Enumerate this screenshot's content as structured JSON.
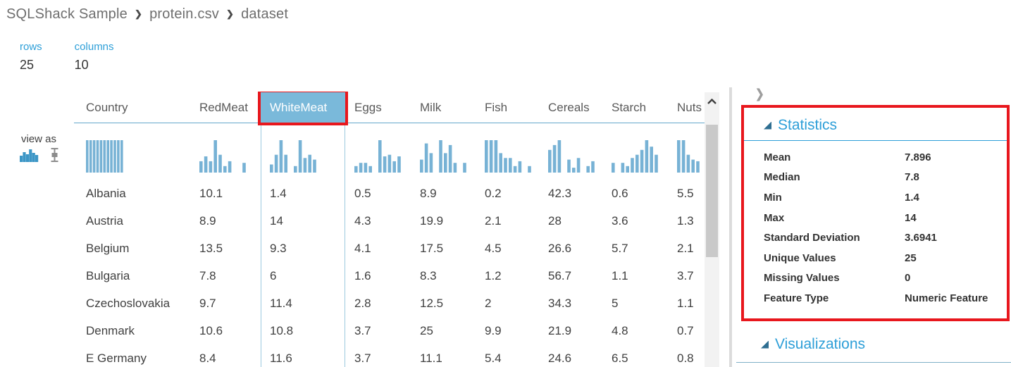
{
  "breadcrumb": {
    "items": [
      "SQLShack Sample",
      "protein.csv",
      "dataset"
    ],
    "separator": "❯"
  },
  "summary": {
    "rows_label": "rows",
    "rows_value": "25",
    "columns_label": "columns",
    "columns_value": "10"
  },
  "view_as": {
    "label": "view as",
    "icons": [
      "histogram-view",
      "boxplot-view"
    ],
    "active": "histogram-view"
  },
  "table": {
    "selected_column": "WhiteMeat",
    "columns": [
      {
        "label": "Country",
        "selected": false,
        "histogram": [
          1,
          1,
          1,
          1,
          1,
          1,
          1,
          1,
          1,
          1,
          1
        ]
      },
      {
        "label": "RedMeat",
        "selected": false,
        "histogram": [
          0.35,
          0.5,
          0.35,
          1.0,
          0.55,
          0.2,
          0.35,
          0,
          0,
          0.3
        ]
      },
      {
        "label": "WhiteMeat",
        "selected": true,
        "histogram": [
          0.25,
          0.55,
          1.0,
          0.55,
          0,
          0.2,
          1.0,
          0.45,
          0.55,
          0.4
        ]
      },
      {
        "label": "Eggs",
        "selected": false,
        "histogram": [
          0.2,
          0.3,
          0.3,
          0.2,
          0,
          1.0,
          0.5,
          0.55,
          0.35,
          0.5
        ]
      },
      {
        "label": "Milk",
        "selected": false,
        "histogram": [
          0.4,
          0.9,
          0.6,
          0,
          1.0,
          0.6,
          0.85,
          0.3,
          0,
          0.3
        ]
      },
      {
        "label": "Fish",
        "selected": false,
        "histogram": [
          1.0,
          1.0,
          1.0,
          0.6,
          0.45,
          0.45,
          0.2,
          0.35,
          0,
          0.2
        ]
      },
      {
        "label": "Cereals",
        "selected": false,
        "histogram": [
          0.7,
          0.85,
          1.0,
          0,
          0.4,
          0.15,
          0.45,
          0,
          0.2,
          0.35
        ]
      },
      {
        "label": "Starch",
        "selected": false,
        "histogram": [
          0.3,
          0,
          0.3,
          0.2,
          0.45,
          0.55,
          0.7,
          1.0,
          0.8,
          0.55
        ]
      },
      {
        "label": "Nuts",
        "selected": false,
        "histogram": [
          1.0,
          1.0,
          0.55,
          0.4,
          0.35,
          0,
          0.45,
          0.65,
          0.5,
          0.3
        ]
      }
    ],
    "rows": [
      [
        "Albania",
        "10.1",
        "1.4",
        "0.5",
        "8.9",
        "0.2",
        "42.3",
        "0.6",
        "5.5"
      ],
      [
        "Austria",
        "8.9",
        "14",
        "4.3",
        "19.9",
        "2.1",
        "28",
        "3.6",
        "1.3"
      ],
      [
        "Belgium",
        "13.5",
        "9.3",
        "4.1",
        "17.5",
        "4.5",
        "26.6",
        "5.7",
        "2.1"
      ],
      [
        "Bulgaria",
        "7.8",
        "6",
        "1.6",
        "8.3",
        "1.2",
        "56.7",
        "1.1",
        "3.7"
      ],
      [
        "Czechoslovakia",
        "9.7",
        "11.4",
        "2.8",
        "12.5",
        "2",
        "34.3",
        "5",
        "1.1"
      ],
      [
        "Denmark",
        "10.6",
        "10.8",
        "3.7",
        "25",
        "9.9",
        "21.9",
        "4.8",
        "0.7"
      ],
      [
        "E Germany",
        "8.4",
        "11.6",
        "3.7",
        "11.1",
        "5.4",
        "24.6",
        "6.5",
        "0.8"
      ]
    ]
  },
  "stats_panel": {
    "collapse_icon": "❯",
    "title": "Statistics",
    "items": [
      {
        "label": "Mean",
        "value": "7.896"
      },
      {
        "label": "Median",
        "value": "7.8"
      },
      {
        "label": "Min",
        "value": "1.4"
      },
      {
        "label": "Max",
        "value": "14"
      },
      {
        "label": "Standard Deviation",
        "value": "3.6941"
      },
      {
        "label": "Unique Values",
        "value": "25"
      },
      {
        "label": "Missing Values",
        "value": "0"
      },
      {
        "label": "Feature Type",
        "value": "Numeric Feature"
      }
    ],
    "visualizations_title": "Visualizations"
  },
  "colors": {
    "accent_blue": "#2e9fd8",
    "bar_blue": "#77b2d5",
    "selected_header_bg": "#7ab9da",
    "highlight_red": "#e8171d",
    "text_dark": "#404040",
    "header_gray": "#595959"
  }
}
